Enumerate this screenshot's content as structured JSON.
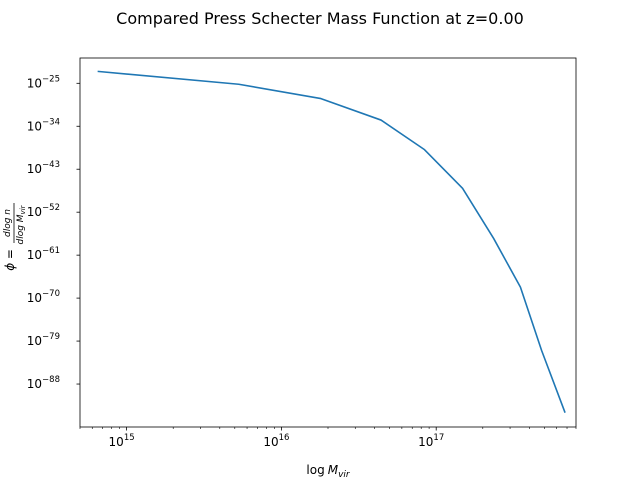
{
  "chart_data": {
    "type": "line",
    "title": "Compared Press Schecter Mass Function at z=0.00",
    "xlabel_base": "log",
    "xlabel_sub": "M",
    "xlabel_subsub": "vir",
    "ylabel_lhs": "ϕ =",
    "ylabel_num": "dlog n",
    "ylabel_den": "dlog M",
    "ylabel_den_sub": "vir",
    "x_scale": "log",
    "y_scale": "log",
    "xlim": [
      500000000000000,
      800000000000000000
    ],
    "ylim_log10": [
      -97,
      -19.7
    ],
    "grid": false,
    "x_major_ticks": [
      {
        "value": 1000000000000000.0,
        "base": "10",
        "exp": "15"
      },
      {
        "value": 1e+16,
        "base": "10",
        "exp": "16"
      },
      {
        "value": 1e+17,
        "base": "10",
        "exp": "17"
      }
    ],
    "y_major_ticks": [
      {
        "log10": -25,
        "base": "10",
        "exp": "−25"
      },
      {
        "log10": -34,
        "base": "10",
        "exp": "−34"
      },
      {
        "log10": -43,
        "base": "10",
        "exp": "−43"
      },
      {
        "log10": -52,
        "base": "10",
        "exp": "−52"
      },
      {
        "log10": -61,
        "base": "10",
        "exp": "−61"
      },
      {
        "log10": -70,
        "base": "10",
        "exp": "−70"
      },
      {
        "log10": -79,
        "base": "10",
        "exp": "−79"
      },
      {
        "log10": -88,
        "base": "10",
        "exp": "−88"
      }
    ],
    "series": [
      {
        "color": "#1f77b4",
        "x": [
          650000000000000,
          5300000000000000,
          18000000000000000,
          44000000000000000,
          84000000000000000,
          148000000000000000,
          235000000000000000,
          350000000000000000,
          480000000000000000,
          680000000000000000
        ],
        "y_log10": [
          -22.5,
          -25.2,
          -28.2,
          -32.7,
          -38.9,
          -47.0,
          -57.5,
          -67.7,
          -81.0,
          -94.0
        ]
      }
    ]
  }
}
